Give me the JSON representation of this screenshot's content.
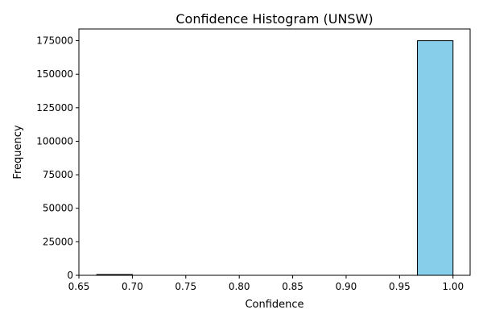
{
  "chart_data": {
    "type": "bar",
    "title": "Confidence Histogram (UNSW)",
    "xlabel": "Confidence",
    "ylabel": "Frequency",
    "xlim": [
      0.65,
      1.016
    ],
    "ylim": [
      0,
      183750
    ],
    "x_ticks": [
      "0.65",
      "0.70",
      "0.75",
      "0.80",
      "0.85",
      "0.90",
      "0.95",
      "1.00"
    ],
    "x_tick_values": [
      0.65,
      0.7,
      0.75,
      0.8,
      0.85,
      0.9,
      0.95,
      1.0
    ],
    "y_ticks": [
      "0",
      "25000",
      "50000",
      "75000",
      "100000",
      "125000",
      "150000",
      "175000"
    ],
    "y_tick_values": [
      0,
      25000,
      50000,
      75000,
      100000,
      125000,
      150000,
      175000
    ],
    "grid": false,
    "bins": [
      {
        "x0": 0.6667,
        "x1": 0.7,
        "count": 600
      },
      {
        "x0": 0.7,
        "x1": 0.7333,
        "count": 0
      },
      {
        "x0": 0.7333,
        "x1": 0.7667,
        "count": 0
      },
      {
        "x0": 0.7667,
        "x1": 0.8,
        "count": 0
      },
      {
        "x0": 0.8,
        "x1": 0.8333,
        "count": 0
      },
      {
        "x0": 0.8333,
        "x1": 0.8667,
        "count": 0
      },
      {
        "x0": 0.8667,
        "x1": 0.9,
        "count": 0
      },
      {
        "x0": 0.9,
        "x1": 0.9333,
        "count": 0
      },
      {
        "x0": 0.9333,
        "x1": 0.9667,
        "count": 0
      },
      {
        "x0": 0.9667,
        "x1": 1.0,
        "count": 175000
      }
    ],
    "bar_color": "#87ceeb",
    "edge_color": "#000000"
  }
}
